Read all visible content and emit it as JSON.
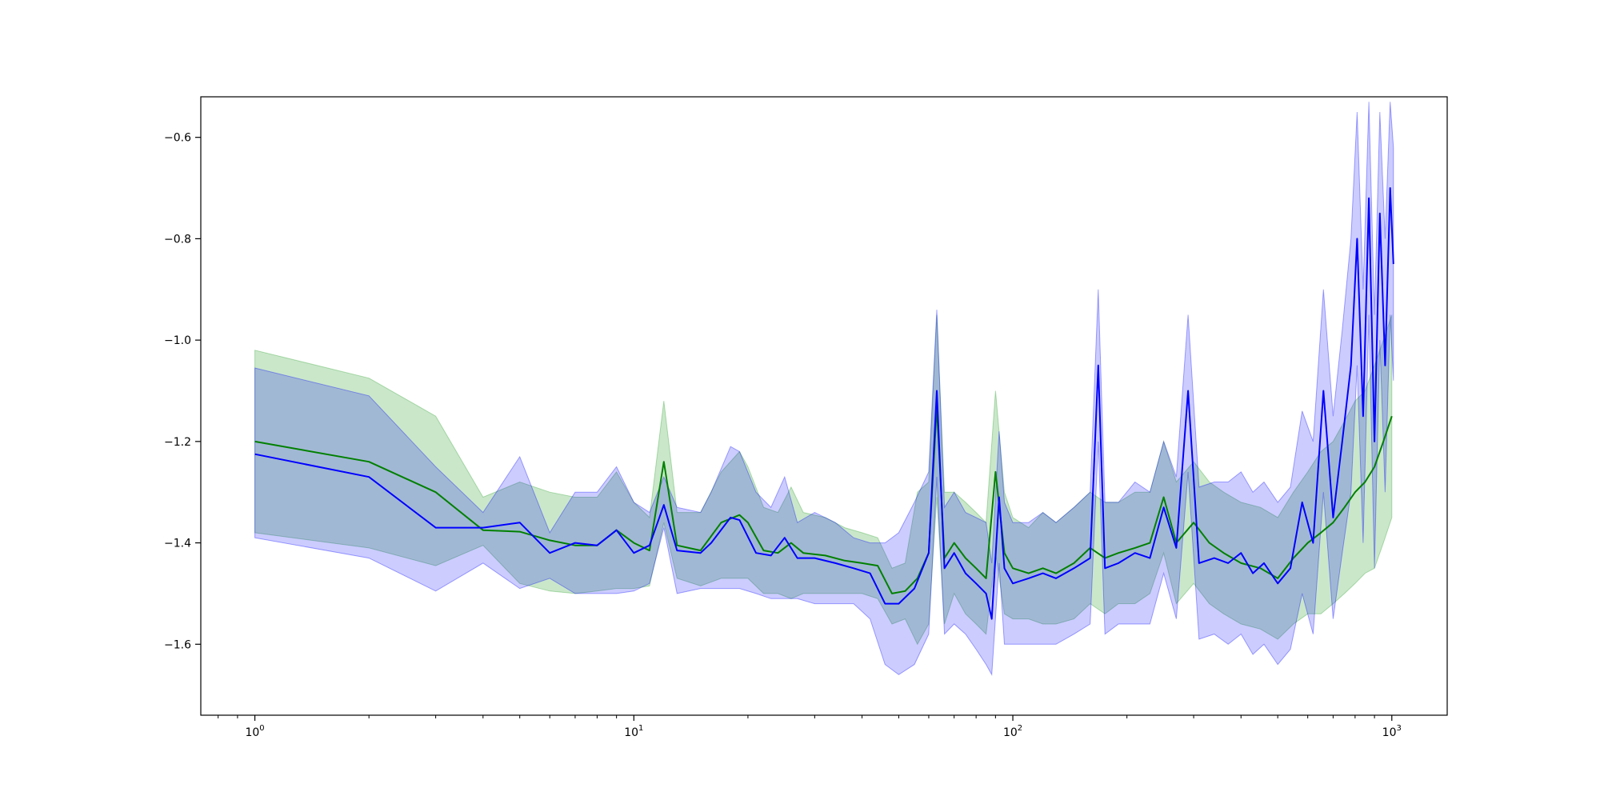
{
  "chart_data": {
    "type": "line",
    "title": "",
    "xlabel": "",
    "ylabel": "",
    "x_scale": "log",
    "xlim": [
      0.72,
      1400
    ],
    "ylim": [
      -1.74,
      -0.52
    ],
    "grid": false,
    "legend": "none",
    "x_ticks": [
      {
        "value": 1,
        "base": "10",
        "exp": "0"
      },
      {
        "value": 10,
        "base": "10",
        "exp": "1"
      },
      {
        "value": 100,
        "base": "10",
        "exp": "2"
      },
      {
        "value": 1000,
        "base": "10",
        "exp": "3"
      }
    ],
    "y_ticks": [
      {
        "value": -0.6,
        "label": "−0.6"
      },
      {
        "value": -0.8,
        "label": "−0.8"
      },
      {
        "value": -1.0,
        "label": "−1.0"
      },
      {
        "value": -1.2,
        "label": "−1.2"
      },
      {
        "value": -1.4,
        "label": "−1.4"
      },
      {
        "value": -1.6,
        "label": "−1.6"
      }
    ],
    "series": [
      {
        "color": "#008000",
        "band_color": "#2ca02c",
        "band_opacity": 0.25,
        "points": [
          [
            1,
            -1.2,
            -1.02,
            -1.38
          ],
          [
            2,
            -1.24,
            -1.075,
            -1.41
          ],
          [
            3,
            -1.3,
            -1.15,
            -1.445
          ],
          [
            4,
            -1.375,
            -1.31,
            -1.405
          ],
          [
            5,
            -1.378,
            -1.28,
            -1.48
          ],
          [
            6,
            -1.395,
            -1.3,
            -1.495
          ],
          [
            7,
            -1.405,
            -1.31,
            -1.5
          ],
          [
            8,
            -1.405,
            -1.31,
            -1.495
          ],
          [
            9,
            -1.375,
            -1.26,
            -1.49
          ],
          [
            10,
            -1.4,
            -1.32,
            -1.49
          ],
          [
            11,
            -1.415,
            -1.35,
            -1.485
          ],
          [
            12,
            -1.24,
            -1.12,
            -1.36
          ],
          [
            13,
            -1.405,
            -1.34,
            -1.47
          ],
          [
            15,
            -1.415,
            -1.34,
            -1.485
          ],
          [
            17,
            -1.36,
            -1.26,
            -1.47
          ],
          [
            19,
            -1.345,
            -1.22,
            -1.47
          ],
          [
            20,
            -1.36,
            -1.25,
            -1.47
          ],
          [
            22,
            -1.415,
            -1.33,
            -1.5
          ],
          [
            24,
            -1.42,
            -1.34,
            -1.5
          ],
          [
            26,
            -1.4,
            -1.29,
            -1.51
          ],
          [
            28,
            -1.42,
            -1.34,
            -1.5
          ],
          [
            32,
            -1.425,
            -1.35,
            -1.5
          ],
          [
            36,
            -1.435,
            -1.37,
            -1.5
          ],
          [
            40,
            -1.44,
            -1.38,
            -1.5
          ],
          [
            44,
            -1.445,
            -1.39,
            -1.51
          ],
          [
            48,
            -1.5,
            -1.45,
            -1.56
          ],
          [
            52,
            -1.495,
            -1.44,
            -1.55
          ],
          [
            56,
            -1.47,
            -1.3,
            -1.6
          ],
          [
            60,
            -1.42,
            -1.28,
            -1.56
          ],
          [
            63,
            -1.13,
            -0.95,
            -1.31
          ],
          [
            66,
            -1.43,
            -1.3,
            -1.56
          ],
          [
            70,
            -1.4,
            -1.3,
            -1.5
          ],
          [
            75,
            -1.43,
            -1.32,
            -1.54
          ],
          [
            80,
            -1.45,
            -1.34,
            -1.56
          ],
          [
            85,
            -1.47,
            -1.36,
            -1.58
          ],
          [
            90,
            -1.26,
            -1.1,
            -1.42
          ],
          [
            95,
            -1.42,
            -1.3,
            -1.54
          ],
          [
            100,
            -1.45,
            -1.35,
            -1.55
          ],
          [
            110,
            -1.46,
            -1.37,
            -1.55
          ],
          [
            120,
            -1.45,
            -1.34,
            -1.56
          ],
          [
            130,
            -1.46,
            -1.36,
            -1.56
          ],
          [
            145,
            -1.44,
            -1.33,
            -1.55
          ],
          [
            160,
            -1.41,
            -1.3,
            -1.52
          ],
          [
            175,
            -1.43,
            -1.32,
            -1.54
          ],
          [
            190,
            -1.42,
            -1.32,
            -1.52
          ],
          [
            210,
            -1.41,
            -1.3,
            -1.52
          ],
          [
            230,
            -1.4,
            -1.3,
            -1.5
          ],
          [
            250,
            -1.31,
            -1.2,
            -1.42
          ],
          [
            270,
            -1.4,
            -1.28,
            -1.52
          ],
          [
            300,
            -1.36,
            -1.24,
            -1.48
          ],
          [
            330,
            -1.4,
            -1.28,
            -1.52
          ],
          [
            360,
            -1.42,
            -1.3,
            -1.54
          ],
          [
            400,
            -1.44,
            -1.32,
            -1.56
          ],
          [
            450,
            -1.45,
            -1.33,
            -1.57
          ],
          [
            500,
            -1.47,
            -1.35,
            -1.59
          ],
          [
            550,
            -1.43,
            -1.3,
            -1.56
          ],
          [
            600,
            -1.4,
            -1.26,
            -1.54
          ],
          [
            650,
            -1.38,
            -1.22,
            -1.54
          ],
          [
            700,
            -1.36,
            -1.2,
            -1.52
          ],
          [
            750,
            -1.33,
            -1.16,
            -1.5
          ],
          [
            800,
            -1.3,
            -1.12,
            -1.48
          ],
          [
            850,
            -1.28,
            -1.1,
            -1.46
          ],
          [
            900,
            -1.25,
            -1.05,
            -1.45
          ],
          [
            950,
            -1.2,
            -1.0,
            -1.4
          ],
          [
            1000,
            -1.15,
            -0.95,
            -1.35
          ]
        ]
      },
      {
        "color": "#0000ff",
        "band_color": "#0000ff",
        "band_opacity": 0.2,
        "points": [
          [
            1,
            -1.225,
            -1.055,
            -1.39
          ],
          [
            2,
            -1.27,
            -1.11,
            -1.43
          ],
          [
            3,
            -1.37,
            -1.25,
            -1.495
          ],
          [
            4,
            -1.37,
            -1.34,
            -1.44
          ],
          [
            5,
            -1.36,
            -1.23,
            -1.49
          ],
          [
            6,
            -1.42,
            -1.38,
            -1.47
          ],
          [
            7,
            -1.4,
            -1.3,
            -1.5
          ],
          [
            8,
            -1.405,
            -1.3,
            -1.5
          ],
          [
            9,
            -1.375,
            -1.25,
            -1.5
          ],
          [
            10,
            -1.42,
            -1.32,
            -1.495
          ],
          [
            11,
            -1.405,
            -1.34,
            -1.48
          ],
          [
            12,
            -1.325,
            -1.27,
            -1.37
          ],
          [
            13,
            -1.415,
            -1.33,
            -1.5
          ],
          [
            15,
            -1.42,
            -1.34,
            -1.49
          ],
          [
            16,
            -1.4,
            -1.3,
            -1.49
          ],
          [
            18,
            -1.35,
            -1.21,
            -1.49
          ],
          [
            19,
            -1.355,
            -1.22,
            -1.49
          ],
          [
            21,
            -1.42,
            -1.3,
            -1.5
          ],
          [
            23,
            -1.425,
            -1.33,
            -1.51
          ],
          [
            25,
            -1.39,
            -1.27,
            -1.51
          ],
          [
            27,
            -1.43,
            -1.36,
            -1.51
          ],
          [
            30,
            -1.43,
            -1.34,
            -1.52
          ],
          [
            34,
            -1.44,
            -1.36,
            -1.52
          ],
          [
            38,
            -1.45,
            -1.39,
            -1.52
          ],
          [
            42,
            -1.46,
            -1.4,
            -1.55
          ],
          [
            46,
            -1.52,
            -1.4,
            -1.64
          ],
          [
            50,
            -1.52,
            -1.38,
            -1.66
          ],
          [
            55,
            -1.49,
            -1.32,
            -1.64
          ],
          [
            60,
            -1.42,
            -1.26,
            -1.58
          ],
          [
            63,
            -1.1,
            -0.94,
            -1.27
          ],
          [
            66,
            -1.45,
            -1.33,
            -1.58
          ],
          [
            70,
            -1.42,
            -1.3,
            -1.56
          ],
          [
            75,
            -1.46,
            -1.34,
            -1.58
          ],
          [
            80,
            -1.48,
            -1.35,
            -1.61
          ],
          [
            85,
            -1.5,
            -1.36,
            -1.64
          ],
          [
            88,
            -1.55,
            -1.44,
            -1.66
          ],
          [
            92,
            -1.31,
            -1.18,
            -1.44
          ],
          [
            95,
            -1.45,
            -1.32,
            -1.6
          ],
          [
            100,
            -1.48,
            -1.36,
            -1.6
          ],
          [
            110,
            -1.47,
            -1.36,
            -1.6
          ],
          [
            120,
            -1.46,
            -1.34,
            -1.6
          ],
          [
            130,
            -1.47,
            -1.36,
            -1.6
          ],
          [
            145,
            -1.45,
            -1.33,
            -1.58
          ],
          [
            160,
            -1.43,
            -1.3,
            -1.56
          ],
          [
            168,
            -1.05,
            -0.9,
            -1.2
          ],
          [
            175,
            -1.45,
            -1.32,
            -1.58
          ],
          [
            190,
            -1.44,
            -1.32,
            -1.56
          ],
          [
            210,
            -1.42,
            -1.28,
            -1.56
          ],
          [
            230,
            -1.43,
            -1.3,
            -1.56
          ],
          [
            250,
            -1.33,
            -1.2,
            -1.46
          ],
          [
            270,
            -1.41,
            -1.27,
            -1.55
          ],
          [
            290,
            -1.1,
            -0.95,
            -1.26
          ],
          [
            310,
            -1.44,
            -1.29,
            -1.59
          ],
          [
            340,
            -1.43,
            -1.28,
            -1.58
          ],
          [
            370,
            -1.44,
            -1.28,
            -1.6
          ],
          [
            400,
            -1.42,
            -1.26,
            -1.58
          ],
          [
            430,
            -1.46,
            -1.3,
            -1.62
          ],
          [
            460,
            -1.44,
            -1.28,
            -1.6
          ],
          [
            500,
            -1.48,
            -1.32,
            -1.64
          ],
          [
            540,
            -1.45,
            -1.29,
            -1.61
          ],
          [
            580,
            -1.32,
            -1.14,
            -1.5
          ],
          [
            620,
            -1.4,
            -1.2,
            -1.58
          ],
          [
            660,
            -1.1,
            -0.9,
            -1.3
          ],
          [
            700,
            -1.35,
            -1.15,
            -1.55
          ],
          [
            740,
            -1.2,
            -0.98,
            -1.42
          ],
          [
            780,
            -1.05,
            -0.8,
            -1.3
          ],
          [
            810,
            -0.8,
            -0.55,
            -1.05
          ],
          [
            840,
            -1.15,
            -0.9,
            -1.4
          ],
          [
            870,
            -0.72,
            -0.53,
            -0.95
          ],
          [
            900,
            -1.2,
            -0.95,
            -1.45
          ],
          [
            930,
            -0.75,
            -0.55,
            -1.0
          ],
          [
            960,
            -1.05,
            -0.8,
            -1.3
          ],
          [
            990,
            -0.7,
            -0.53,
            -0.95
          ],
          [
            1010,
            -0.85,
            -0.62,
            -1.08
          ]
        ]
      }
    ]
  }
}
